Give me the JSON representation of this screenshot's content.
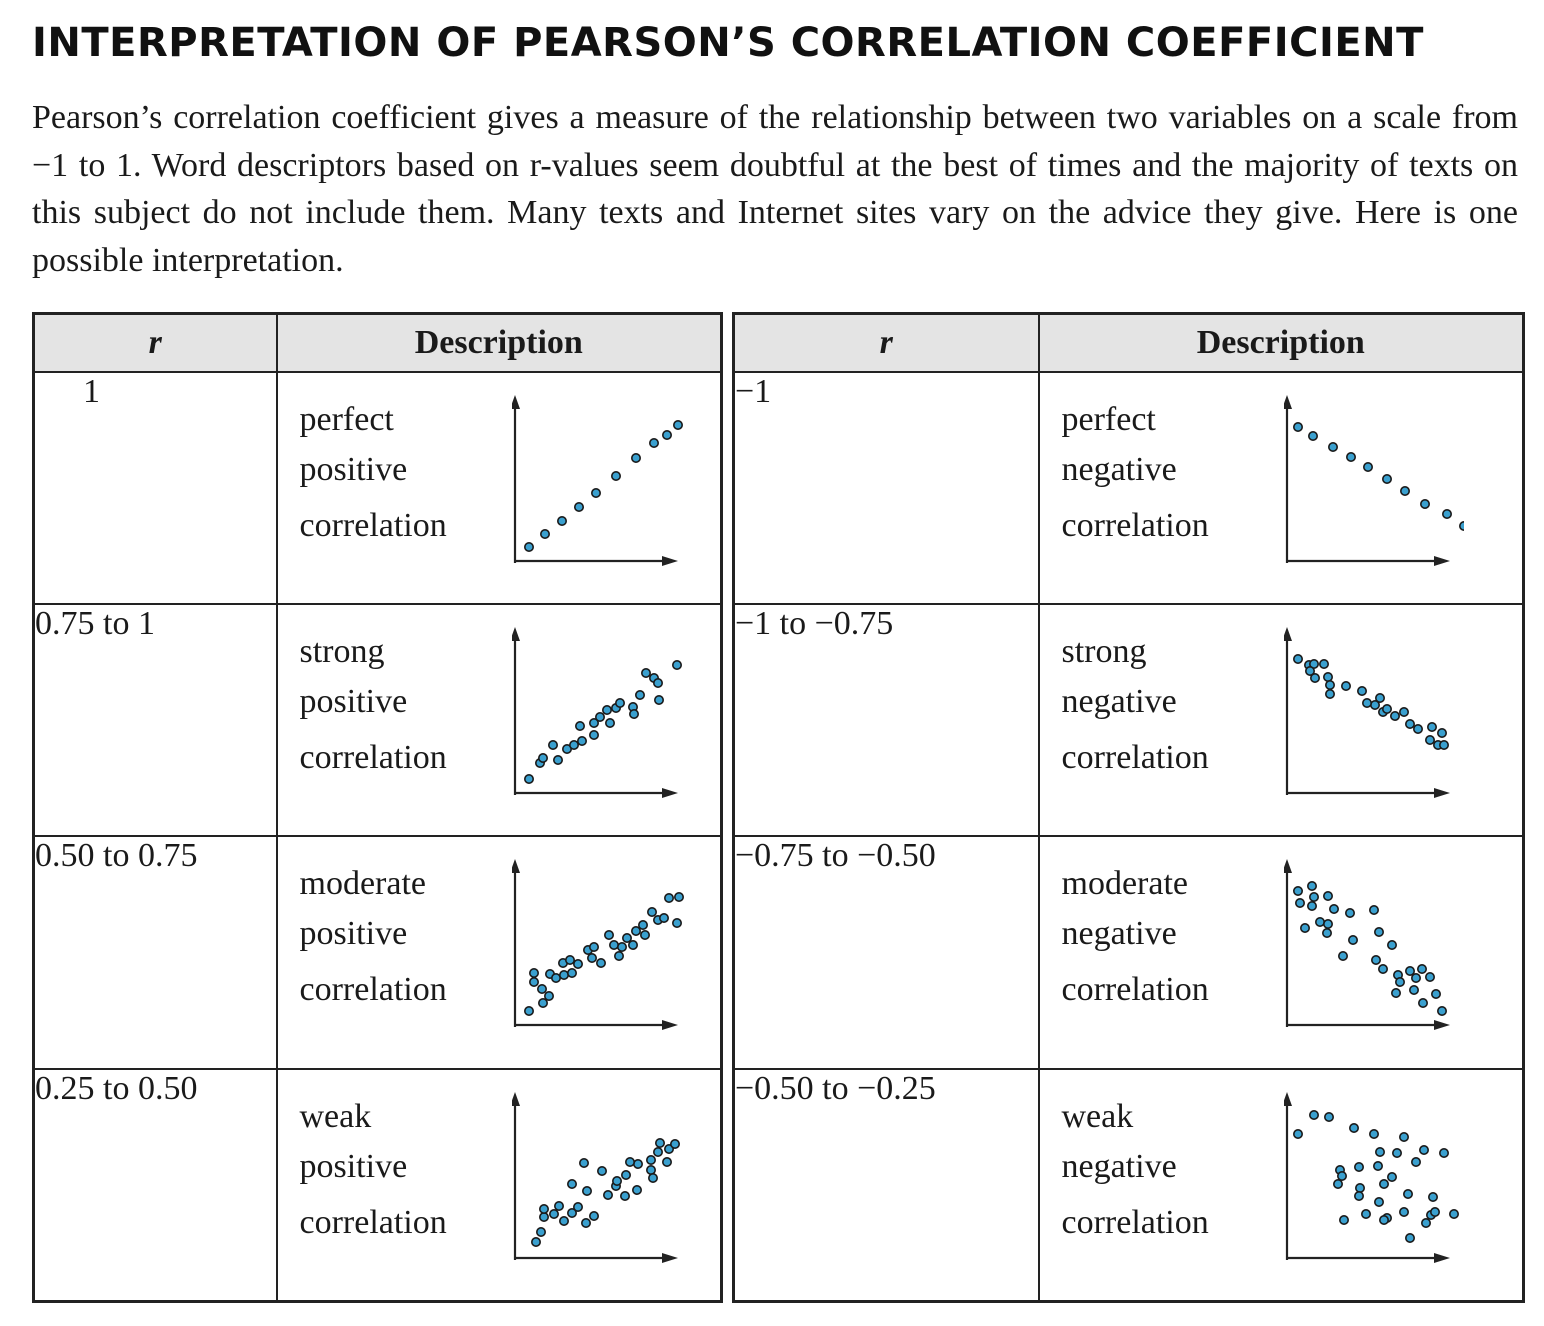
{
  "title": "INTERPRETATION OF PEARSON’S CORRELATION COEFFICIENT",
  "intro": "Pearson’s correlation coefficient gives a measure of the relationship between two variables on a scale from −1 to 1. Word descriptors based on r-values seem doubtful at the best of times and the majority of texts on this subject do not include them. Many texts and Internet sites vary on the advice they give. Here is one possible interpretation.",
  "headers": {
    "r": "r",
    "description": "Description"
  },
  "colors": {
    "point_fill": "#3aa0cf",
    "point_stroke": "#1a1a1a",
    "header_bg": "#e4e4e4",
    "line": "#222222"
  },
  "positive_rows": [
    {
      "r": "1",
      "strength": "perfect",
      "direction": "positive",
      "word": "correlation",
      "scatter": "perfect-positive-scatter-icon"
    },
    {
      "r": "0.75 to 1",
      "strength": "strong",
      "direction": "positive",
      "word": "correlation",
      "scatter": "strong-positive-scatter-icon"
    },
    {
      "r": "0.50 to 0.75",
      "strength": "moderate",
      "direction": "positive",
      "word": "correlation",
      "scatter": "moderate-positive-scatter-icon"
    },
    {
      "r": "0.25 to 0.50",
      "strength": "weak",
      "direction": "positive",
      "word": "correlation",
      "scatter": "weak-positive-scatter-icon"
    }
  ],
  "negative_rows": [
    {
      "r": "−1",
      "strength": "perfect",
      "direction": "negative",
      "word": "correlation",
      "scatter": "perfect-negative-scatter-icon"
    },
    {
      "r": "−1 to −0.75",
      "strength": "strong",
      "direction": "negative",
      "word": "correlation",
      "scatter": "strong-negative-scatter-icon"
    },
    {
      "r": "−0.75 to −0.50",
      "strength": "moderate",
      "direction": "negative",
      "word": "correlation",
      "scatter": "moderate-negative-scatter-icon"
    },
    {
      "r": "−0.50 to −0.25",
      "strength": "weak",
      "direction": "negative",
      "word": "correlation",
      "scatter": "weak-negative-scatter-icon"
    }
  ]
}
